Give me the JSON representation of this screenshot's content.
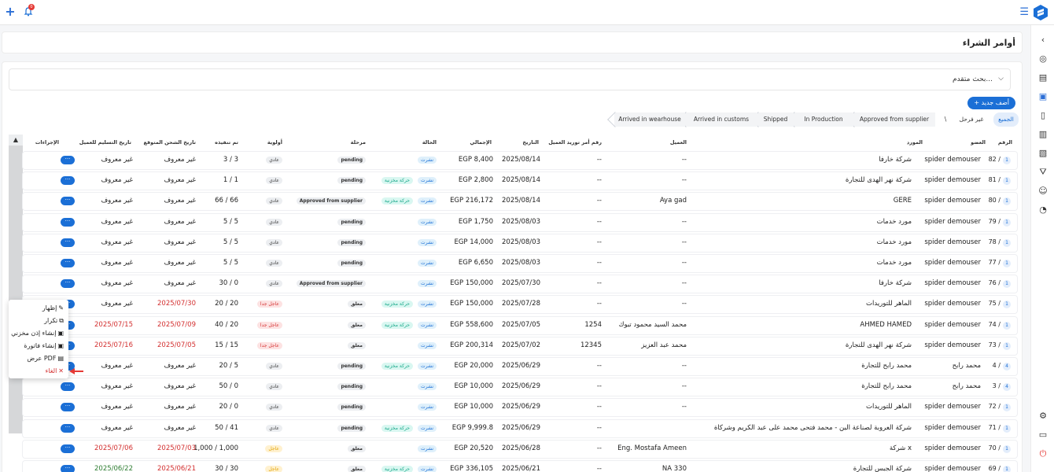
{
  "topbar": {
    "plus_icon": "plus-icon",
    "bell_icon": "bell-icon",
    "bell_badge": "0",
    "menu_icon": "menu-icon",
    "logo_icon": "logo-icon"
  },
  "sidebar": {
    "items": [
      {
        "icon": "chevron-left-icon",
        "glyph": "‹"
      },
      {
        "icon": "badge-icon",
        "glyph": "◎"
      },
      {
        "icon": "store-icon",
        "glyph": "▤"
      },
      {
        "icon": "orders-icon",
        "glyph": "▣"
      },
      {
        "icon": "document-icon",
        "glyph": "▯"
      },
      {
        "icon": "invoice-icon",
        "glyph": "▥"
      },
      {
        "icon": "receipt-icon",
        "glyph": "▧"
      },
      {
        "icon": "cart-icon",
        "glyph": "⛛"
      },
      {
        "icon": "users-icon",
        "glyph": "☺"
      },
      {
        "icon": "chart-icon",
        "glyph": "◔"
      },
      {
        "icon": "settings-icon",
        "glyph": "⚙"
      },
      {
        "icon": "screen-icon",
        "glyph": "▭"
      },
      {
        "icon": "power-icon",
        "glyph": "⏻"
      }
    ]
  },
  "page_title": "أوامر الشراء",
  "search": {
    "label": "بحث متقدم...",
    "chevron": "⌵"
  },
  "add_button": "+ أضف جديد",
  "tabs": [
    {
      "label": "الجميع"
    },
    {
      "label": "غير فرحل"
    },
    {
      "label": "\\"
    },
    {
      "label": "Approved from supplier"
    },
    {
      "label": "In Production"
    },
    {
      "label": "Shipped"
    },
    {
      "label": "Arrived in customs"
    },
    {
      "label": "Arrived in wearhouse"
    }
  ],
  "columns": {
    "number": "الرقم",
    "member": "العضو",
    "supplier": "المورد",
    "client": "العميل",
    "supply_order": "رقم أمر توريد العميل",
    "date": "التاريخ",
    "total": "الإجمالي",
    "status": "الحالة",
    "stage": "مرحلة",
    "priority": "أولوية",
    "executed": "تم تنفيذه",
    "ship_date": "تاريخ الشحن المتوقع",
    "delivery_date": "تاريخ التسليم للعميل",
    "actions": "الإجراءات"
  },
  "rows": [
    {
      "num": "82 /",
      "idx": "1",
      "member": "spider demouser",
      "supplier": "شركة خارفا",
      "client": "--",
      "supply": "--",
      "date": "2025/08/14",
      "total": "EGP 8,400",
      "status": "نشرت",
      "stock": "",
      "stage": "pending",
      "prio": "عادي",
      "prio_type": "normal",
      "exec": "3 / 3",
      "ship": "غير معروف",
      "ship_color": "",
      "deliv": "غير معروف",
      "deliv_color": ""
    },
    {
      "num": "81 /",
      "idx": "1",
      "member": "spider demouser",
      "supplier": "شركة نهر الهدى للتجارة",
      "client": "--",
      "supply": "--",
      "date": "2025/08/14",
      "total": "EGP 2,800",
      "status": "نشرت",
      "stock": "حركة مخزنية",
      "stage": "pending",
      "prio": "عادي",
      "prio_type": "normal",
      "exec": "1 / 1",
      "ship": "غير معروف",
      "ship_color": "",
      "deliv": "غير معروف",
      "deliv_color": ""
    },
    {
      "num": "80 /",
      "idx": "1",
      "member": "spider demouser",
      "supplier": "GERE",
      "client": "Aya gad",
      "supply": "--",
      "date": "2025/08/14",
      "total": "EGP 216,172",
      "status": "نشرت",
      "stock": "حركة مخزنية",
      "stage": "Approved from supplier",
      "prio": "عادي",
      "prio_type": "normal",
      "exec": "66 / 66",
      "ship": "غير معروف",
      "ship_color": "",
      "deliv": "غير معروف",
      "deliv_color": ""
    },
    {
      "num": "79 /",
      "idx": "1",
      "member": "spider demouser",
      "supplier": "مورد خدمات",
      "client": "--",
      "supply": "--",
      "date": "2025/08/03",
      "total": "EGP 1,750",
      "status": "نشرت",
      "stock": "",
      "stage": "pending",
      "prio": "عادي",
      "prio_type": "normal",
      "exec": "5 / 5",
      "ship": "غير معروف",
      "ship_color": "",
      "deliv": "غير معروف",
      "deliv_color": ""
    },
    {
      "num": "78 /",
      "idx": "1",
      "member": "spider demouser",
      "supplier": "مورد خدمات",
      "client": "--",
      "supply": "--",
      "date": "2025/08/03",
      "total": "EGP 14,000",
      "status": "نشرت",
      "stock": "",
      "stage": "pending",
      "prio": "عادي",
      "prio_type": "normal",
      "exec": "5 / 5",
      "ship": "غير معروف",
      "ship_color": "",
      "deliv": "غير معروف",
      "deliv_color": ""
    },
    {
      "num": "77 /",
      "idx": "1",
      "member": "spider demouser",
      "supplier": "مورد خدمات",
      "client": "--",
      "supply": "--",
      "date": "2025/08/03",
      "total": "EGP 6,650",
      "status": "نشرت",
      "stock": "",
      "stage": "pending",
      "prio": "عادي",
      "prio_type": "normal",
      "exec": "5 / 5",
      "ship": "غير معروف",
      "ship_color": "",
      "deliv": "غير معروف",
      "deliv_color": ""
    },
    {
      "num": "76 /",
      "idx": "1",
      "member": "spider demouser",
      "supplier": "شركة خارفا",
      "client": "--",
      "supply": "--",
      "date": "2025/07/30",
      "total": "EGP 150,000",
      "status": "نشرت",
      "stock": "",
      "stage": "Approved from supplier",
      "prio": "عادي",
      "prio_type": "normal",
      "exec": "30 / 0",
      "ship": "غير معروف",
      "ship_color": "",
      "deliv": "غير معروف",
      "deliv_color": ""
    },
    {
      "num": "75 /",
      "idx": "1",
      "member": "spider demouser",
      "supplier": "الماهر للتوريدات",
      "client": "--",
      "supply": "--",
      "date": "2025/07/28",
      "total": "EGP 150,000",
      "status": "نشرت",
      "stock": "حركة مخزنية",
      "stage": "معلق",
      "prio": "عاجل جدا",
      "prio_type": "urgent",
      "exec": "20 / 20",
      "ship": "2025/07/30",
      "ship_color": "red",
      "deliv": "غير معروف",
      "deliv_color": ""
    },
    {
      "num": "74 /",
      "idx": "1",
      "member": "spider demouser",
      "supplier": "AHMED HAMED",
      "client": "محمد السيد محمود تبوك",
      "supply": "1254",
      "date": "2025/07/05",
      "total": "EGP 558,600",
      "status": "نشرت",
      "stock": "حركة مخزنية",
      "stage": "معلق",
      "prio": "عاجل جدا",
      "prio_type": "urgent",
      "exec": "40 / 20",
      "ship": "2025/07/09",
      "ship_color": "red",
      "deliv": "2025/07/15",
      "deliv_color": "red"
    },
    {
      "num": "73 /",
      "idx": "1",
      "member": "spider demouser",
      "supplier": "شركة نهر الهدى للتجارة",
      "client": "محمد عبد العزيز",
      "supply": "12345",
      "date": "2025/07/02",
      "total": "EGP 200,314",
      "status": "نشرت",
      "stock": "",
      "stage": "معلق",
      "prio": "عاجل جدا",
      "prio_type": "urgent",
      "exec": "15 / 15",
      "ship": "2025/07/05",
      "ship_color": "red",
      "deliv": "2025/07/16",
      "deliv_color": "red"
    },
    {
      "num": "4 /",
      "idx": "4",
      "member": "محمد رابح",
      "supplier": "محمد رابح للتجارة",
      "client": "--",
      "supply": "--",
      "date": "2025/06/29",
      "total": "EGP 20,000",
      "status": "نشرت",
      "stock": "حركة مخزنية",
      "stage": "pending",
      "prio": "عادي",
      "prio_type": "normal",
      "exec": "20 / 5",
      "ship": "غير معروف",
      "ship_color": "",
      "deliv": "غير معروف",
      "deliv_color": ""
    },
    {
      "num": "3 /",
      "idx": "4",
      "member": "محمد رابح",
      "supplier": "محمد رابح للتجارة",
      "client": "--",
      "supply": "--",
      "date": "2025/06/29",
      "total": "EGP 10,000",
      "status": "نشرت",
      "stock": "",
      "stage": "pending",
      "prio": "عادي",
      "prio_type": "normal",
      "exec": "50 / 0",
      "ship": "غير معروف",
      "ship_color": "",
      "deliv": "غير معروف",
      "deliv_color": ""
    },
    {
      "num": "72 /",
      "idx": "1",
      "member": "spider demouser",
      "supplier": "الماهر للتوريدات",
      "client": "--",
      "supply": "--",
      "date": "2025/06/29",
      "total": "EGP 10,000",
      "status": "نشرت",
      "stock": "",
      "stage": "pending",
      "prio": "عادي",
      "prio_type": "normal",
      "exec": "20 / 0",
      "ship": "غير معروف",
      "ship_color": "",
      "deliv": "غير معروف",
      "deliv_color": ""
    },
    {
      "num": "71 /",
      "idx": "1",
      "member": "spider demouser",
      "supplier": "شركة العروبة لصناعة البن - محمد فتحى محمد على عبد الكريم وشركاة",
      "client": "",
      "supply": "--",
      "date": "2025/06/29",
      "total": "EGP 9,999.8",
      "status": "نشرت",
      "stock": "حركة مخزنية",
      "stage": "pending",
      "prio": "عادي",
      "prio_type": "normal",
      "exec": "50 / 41",
      "ship": "غير معروف",
      "ship_color": "",
      "deliv": "غير معروف",
      "deliv_color": ""
    },
    {
      "num": "70 /",
      "idx": "1",
      "member": "spider demouser",
      "supplier": "شركة x",
      "client": "Eng. Mostafa Ameen",
      "supply": "--",
      "date": "2025/06/28",
      "total": "EGP 20,520",
      "status": "نشرت",
      "stock": "",
      "stage": "معلق",
      "prio": "عاجل",
      "prio_type": "warn",
      "exec": "1,000 / 1,000",
      "ship": "2025/07/03",
      "ship_color": "red",
      "deliv": "2025/07/06",
      "deliv_color": "red"
    },
    {
      "num": "69 /",
      "idx": "1",
      "member": "spider demouser",
      "supplier": "شركة الجبس للتجارة",
      "client": "NA 330",
      "supply": "--",
      "date": "2025/06/21",
      "total": "EGP 336,105",
      "status": "نشرت",
      "stock": "حركة مخزنية",
      "stage": "معلق",
      "prio": "عاجل",
      "prio_type": "warn",
      "exec": "30 / 30",
      "ship": "2025/06/21",
      "ship_color": "red",
      "deliv": "2025/06/22",
      "deliv_color": "green"
    }
  ],
  "dropdown": {
    "items": [
      {
        "label": "إظهار",
        "icon": "pencil-icon",
        "glyph": "✎"
      },
      {
        "label": "تكرار",
        "icon": "copy-icon",
        "glyph": "⧉"
      },
      {
        "label": "إنشاء إذن مخزني",
        "icon": "warehouse-icon",
        "glyph": "▣"
      },
      {
        "label": "إنشاء فاتورة",
        "icon": "invoice-icon",
        "glyph": "▣"
      },
      {
        "label": "عرض PDF",
        "icon": "pdf-icon",
        "glyph": "▤"
      },
      {
        "label": "الغاء",
        "icon": "close-icon",
        "glyph": "✕"
      }
    ]
  },
  "action_dots": "···",
  "colors": {
    "primary": "#1b6fd6",
    "red": "#d32f2f",
    "green": "#2e7d32"
  }
}
